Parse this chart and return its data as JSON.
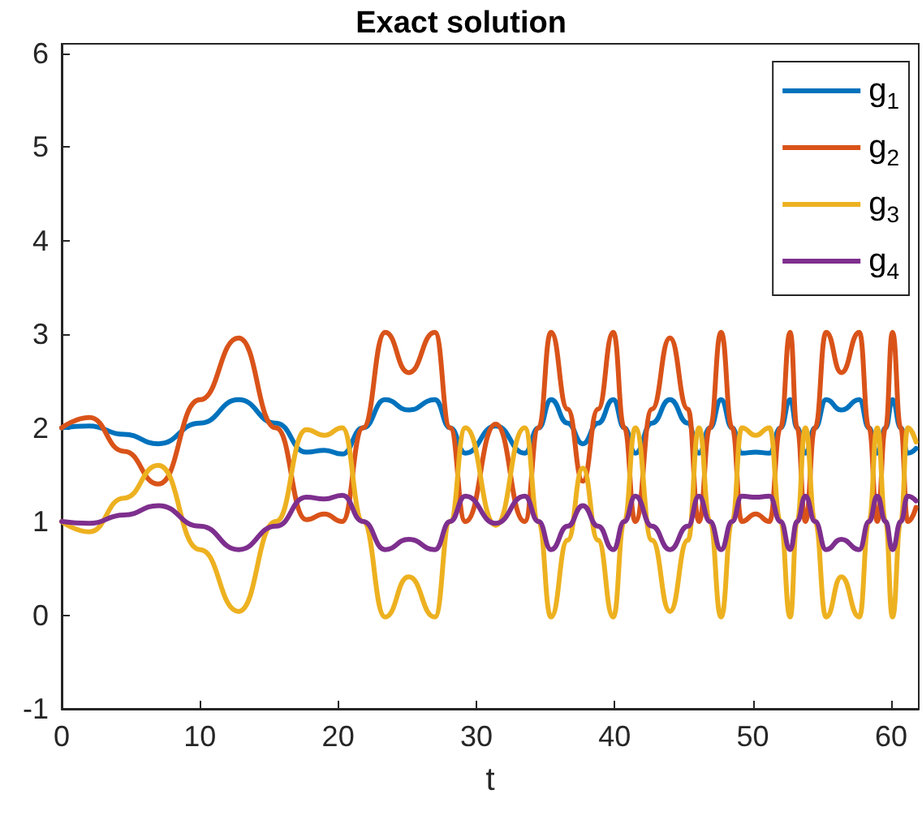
{
  "chart_data": {
    "type": "line",
    "title": "Exact solution",
    "xlabel": "t",
    "x": [
      0,
      2,
      4.5,
      7,
      10,
      12.8,
      15.5,
      17.7,
      19,
      20.3,
      21.8,
      23.4,
      25.1,
      27,
      28.1,
      29.2,
      31.4,
      33.5,
      34.5,
      35.4,
      36.6,
      37.7,
      38.8,
      39.9,
      40.7,
      41.5,
      42.7,
      44,
      45.3,
      46.1,
      46.9,
      47.7,
      48.5,
      49.2,
      50.2,
      51.2,
      52,
      52.7,
      53.2,
      53.8,
      54.5,
      55.3,
      56.4,
      57.7,
      58.4,
      59,
      59.6,
      60.1,
      60.7,
      61.2,
      61.8
    ],
    "series": [
      {
        "name": "g$_{1}$",
        "color": "#0072bd",
        "values": [
          2.0,
          2.02,
          1.93,
          1.83,
          2.05,
          2.3,
          2.05,
          1.74,
          1.76,
          1.72,
          2.0,
          2.3,
          2.19,
          2.3,
          2.0,
          1.73,
          2.02,
          1.73,
          2.0,
          2.3,
          2.05,
          1.83,
          2.05,
          2.3,
          2.0,
          1.73,
          2.05,
          2.3,
          2.05,
          1.73,
          2.0,
          2.3,
          2.0,
          1.73,
          1.74,
          1.73,
          2.0,
          2.3,
          2.0,
          1.73,
          2.0,
          2.3,
          2.19,
          2.3,
          2.0,
          1.73,
          2.0,
          2.3,
          2.0,
          1.73,
          1.78
        ]
      },
      {
        "name": "g$_{2}$",
        "color": "#d95319",
        "values": [
          2.0,
          2.11,
          1.75,
          1.4,
          2.3,
          2.96,
          2.0,
          1.02,
          1.08,
          1.0,
          2.0,
          3.02,
          2.59,
          3.02,
          2.0,
          1.0,
          2.04,
          1.0,
          2.0,
          3.02,
          2.2,
          1.43,
          2.2,
          3.02,
          2.0,
          1.0,
          2.2,
          2.96,
          2.2,
          1.0,
          2.0,
          3.02,
          2.0,
          1.0,
          1.08,
          1.0,
          2.0,
          3.02,
          2.0,
          1.0,
          2.0,
          3.02,
          2.59,
          3.02,
          2.0,
          1.0,
          2.0,
          3.02,
          2.0,
          1.0,
          1.15
        ]
      },
      {
        "name": "g$_{3}$",
        "color": "#edb120",
        "values": [
          1.0,
          0.89,
          1.25,
          1.6,
          0.7,
          0.04,
          1.0,
          1.98,
          1.92,
          2.0,
          1.0,
          -0.02,
          0.41,
          -0.02,
          1.0,
          2.0,
          0.96,
          2.0,
          1.0,
          -0.02,
          0.8,
          1.57,
          0.8,
          -0.02,
          1.0,
          2.0,
          0.8,
          0.04,
          0.8,
          2.0,
          1.0,
          -0.02,
          1.0,
          2.0,
          1.92,
          2.0,
          1.0,
          -0.02,
          1.0,
          2.0,
          1.0,
          -0.02,
          0.41,
          -0.02,
          1.0,
          2.0,
          1.0,
          -0.02,
          1.0,
          2.0,
          1.85
        ]
      },
      {
        "name": "g$_{4}$",
        "color": "#7e2f8e",
        "values": [
          1.0,
          0.98,
          1.07,
          1.17,
          0.95,
          0.7,
          0.95,
          1.26,
          1.24,
          1.28,
          1.0,
          0.7,
          0.81,
          0.7,
          1.0,
          1.27,
          0.98,
          1.27,
          1.0,
          0.7,
          0.95,
          1.17,
          0.95,
          0.7,
          1.0,
          1.27,
          0.95,
          0.7,
          0.95,
          1.27,
          1.0,
          0.7,
          1.0,
          1.27,
          1.26,
          1.27,
          1.0,
          0.7,
          1.0,
          1.27,
          1.0,
          0.7,
          0.81,
          0.7,
          1.0,
          1.27,
          1.0,
          0.7,
          1.0,
          1.27,
          1.22
        ]
      }
    ],
    "xlim": [
      0,
      62
    ],
    "xticks": [
      0,
      10,
      20,
      30,
      40,
      50,
      60
    ],
    "ylim": [
      -1,
      6.1
    ],
    "yticks": [
      -1,
      0,
      1,
      2,
      3,
      4,
      5,
      6
    ],
    "grid": false,
    "legend": "top right",
    "marker": "none",
    "line_style": "solid"
  }
}
